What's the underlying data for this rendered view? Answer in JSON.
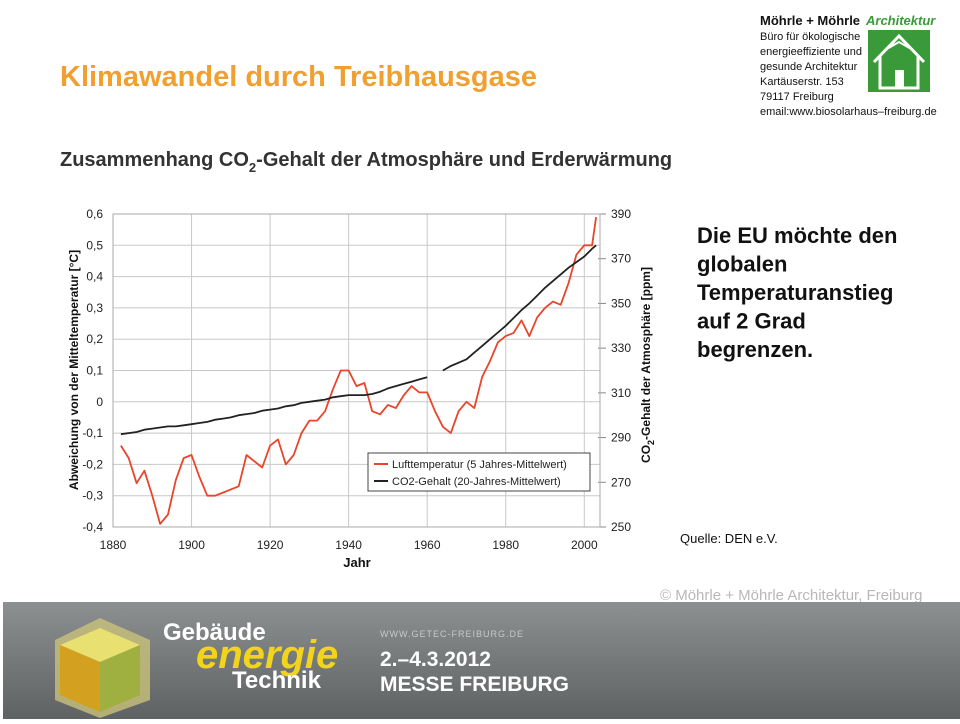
{
  "header": {
    "title": "Klimawandel durch Treibhausgase",
    "company": "Möhrle + Möhrle",
    "company_tag": "Architektur",
    "company_lines": [
      "Büro für ökologische",
      "energieeffiziente und",
      "gesunde Architektur",
      "Kartäuserstr. 153",
      "79117 Freiburg",
      "email:www.biosolarhaus–freiburg.de"
    ]
  },
  "subtitle": [
    "Zusammenhang CO",
    "2",
    "-Gehalt der Atmosphäre und Erderwärmung"
  ],
  "chart_data": {
    "type": "line",
    "xlabel": "Jahr",
    "ylabel": "Abweichung von der Mitteltemperatur [°C]",
    "y2label": [
      "CO",
      "2",
      "-Gehalt der Atmosphäre [ppm]"
    ],
    "x": [
      1882,
      1884,
      1886,
      1888,
      1890,
      1892,
      1894,
      1896,
      1898,
      1900,
      1902,
      1904,
      1906,
      1908,
      1910,
      1912,
      1914,
      1916,
      1918,
      1920,
      1922,
      1924,
      1926,
      1928,
      1930,
      1932,
      1934,
      1936,
      1938,
      1940,
      1942,
      1944,
      1946,
      1948,
      1950,
      1952,
      1954,
      1956,
      1958,
      1960,
      1962,
      1964,
      1966,
      1968,
      1970,
      1972,
      1974,
      1976,
      1978,
      1980,
      1982,
      1984,
      1986,
      1988,
      1990,
      1992,
      1994,
      1996,
      1998,
      2000,
      2002,
      2003
    ],
    "series": [
      {
        "name": "Lufttemperatur (5 Jahres-Mittelwert)",
        "color": "#e8452a",
        "values": [
          -0.14,
          -0.18,
          -0.26,
          -0.22,
          -0.3,
          -0.39,
          -0.36,
          -0.25,
          -0.18,
          -0.17,
          -0.24,
          -0.3,
          -0.3,
          -0.29,
          -0.28,
          -0.27,
          -0.17,
          -0.19,
          -0.21,
          -0.14,
          -0.12,
          -0.2,
          -0.17,
          -0.1,
          -0.06,
          -0.06,
          -0.03,
          0.04,
          0.1,
          0.1,
          0.05,
          0.06,
          -0.03,
          -0.04,
          -0.01,
          -0.02,
          0.02,
          0.05,
          0.03,
          0.03,
          -0.03,
          -0.08,
          -0.1,
          -0.03,
          0,
          -0.02,
          0.08,
          0.13,
          0.19,
          0.21,
          0.22,
          0.26,
          0.21,
          0.27,
          0.3,
          0.32,
          0.31,
          0.38,
          0.47,
          0.5,
          0.5,
          0.59
        ]
      },
      {
        "name": "CO2-Gehalt (20-Jahres-Mittelwert)",
        "color": "#222222",
        "axis": "y2",
        "values": [
          291.5,
          292,
          292.5,
          293.5,
          294,
          294.5,
          295,
          295,
          295.5,
          296,
          296.5,
          297,
          298,
          298.5,
          299,
          300,
          300.5,
          301,
          302,
          302.5,
          303,
          304,
          304.5,
          305.5,
          306,
          306.5,
          307,
          308,
          308.5,
          309,
          309,
          309,
          309.5,
          310.5,
          312,
          313,
          314,
          315,
          316,
          317,
          null,
          320,
          322,
          323.5,
          325,
          328,
          331,
          334,
          337,
          340,
          343.5,
          347,
          350,
          353.5,
          357,
          360,
          363,
          366,
          368.5,
          371,
          374.5,
          376
        ]
      }
    ],
    "xlim": [
      1880,
      2004
    ],
    "xticks": [
      1880,
      1900,
      1920,
      1940,
      1960,
      1980,
      2000
    ],
    "ylim": [
      -0.4,
      0.6
    ],
    "yticks": [
      {
        "value": -0.4,
        "label": "-0,4"
      },
      {
        "value": -0.3,
        "label": "-0,3"
      },
      {
        "value": -0.2,
        "label": "-0,2"
      },
      {
        "value": -0.1,
        "label": "-0,1"
      },
      0,
      {
        "value": 0.1,
        "label": "0,1"
      },
      {
        "value": 0.2,
        "label": "0,2"
      },
      {
        "value": 0.3,
        "label": "0,3"
      },
      {
        "value": 0.4,
        "label": "0,4"
      },
      {
        "value": 0.5,
        "label": "0,5"
      },
      {
        "value": 0.6,
        "label": "0,6"
      }
    ],
    "y2lim": [
      250,
      390
    ],
    "y2ticks": [
      250,
      270,
      290,
      310,
      330,
      350,
      370,
      390
    ],
    "grid": true,
    "legend": "lower right"
  },
  "message": [
    "Die EU möchte den",
    "globalen",
    "Temperaturanstieg",
    "auf 2 Grad",
    "begrenzen."
  ],
  "source": "Quelle: DEN e.V.",
  "copyright": "© Möhrle + Möhrle Architektur, Freiburg",
  "banner": {
    "word1": "Gebäude",
    "word2": "energie",
    "word3": "Technik",
    "url": "WWW.GETEC-FREIBURG.DE",
    "date": "2.–4.3.2012",
    "venue": "MESSE FREIBURG"
  }
}
